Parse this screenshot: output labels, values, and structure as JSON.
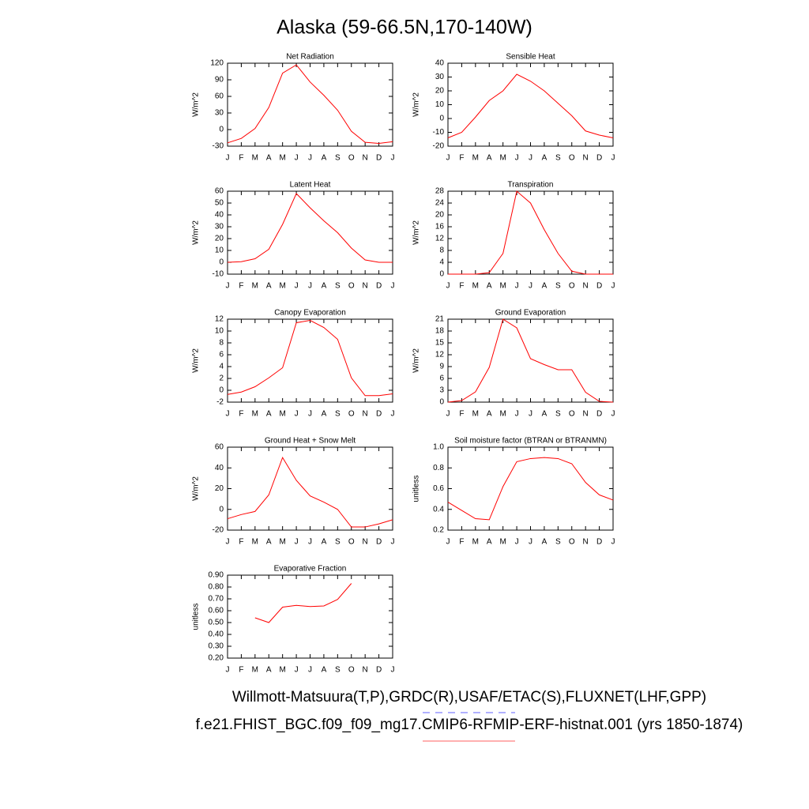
{
  "title": "Alaska (59-66.5N,170-140W)",
  "footer": [
    "Willmott-Matsuura(T,P),GRDC(R),USAF/ETAC(S),FLUXNET(LHF,GPP)",
    "f.e21.FHIST_BGC.f09_f09_mg17.CMIP6-RFMIP-ERF-histnat.001 (yrs 1850-1874)"
  ],
  "chart_data": [
    {
      "type": "line",
      "title": "Net Radiation",
      "y_label": "W/m^2",
      "categories": [
        "J",
        "F",
        "M",
        "A",
        "M",
        "J",
        "J",
        "A",
        "S",
        "O",
        "N",
        "D",
        "J"
      ],
      "color": "#ff0000",
      "values": [
        -24,
        -16,
        2,
        40,
        102,
        117,
        86,
        62,
        35,
        -3,
        -23,
        -25,
        -22
      ],
      "ylim": [
        -30,
        120
      ],
      "yticks": [
        -30,
        0,
        30,
        60,
        90,
        120
      ]
    },
    {
      "type": "line",
      "title": "Sensible Heat",
      "y_label": "W/m^2",
      "categories": [
        "J",
        "F",
        "M",
        "A",
        "M",
        "J",
        "J",
        "A",
        "S",
        "O",
        "N",
        "D",
        "J"
      ],
      "color": "#ff0000",
      "values": [
        -14,
        -10,
        1,
        13,
        20,
        32,
        27,
        20,
        11,
        2,
        -9,
        -12,
        -14
      ],
      "ylim": [
        -20,
        40
      ],
      "yticks": [
        -20,
        -10,
        0,
        10,
        20,
        30,
        40
      ]
    },
    {
      "type": "line",
      "title": "Latent Heat",
      "y_label": "W/m^2",
      "categories": [
        "J",
        "F",
        "M",
        "A",
        "M",
        "J",
        "J",
        "A",
        "S",
        "O",
        "N",
        "D",
        "J"
      ],
      "color": "#ff0000",
      "values": [
        0,
        0.5,
        3,
        11,
        32,
        58,
        46,
        35,
        25,
        12,
        2,
        0,
        0
      ],
      "ylim": [
        -10,
        60
      ],
      "yticks": [
        -10,
        0,
        10,
        20,
        30,
        40,
        50,
        60
      ]
    },
    {
      "type": "line",
      "title": "Transpiration",
      "y_label": "W/m^2",
      "categories": [
        "J",
        "F",
        "M",
        "A",
        "M",
        "J",
        "J",
        "A",
        "S",
        "O",
        "N",
        "D",
        "J"
      ],
      "color": "#ff0000",
      "values": [
        0,
        0,
        0,
        0.5,
        7,
        28,
        24,
        15,
        7,
        1,
        0,
        0,
        0
      ],
      "ylim": [
        0,
        28
      ],
      "yticks": [
        0,
        4,
        8,
        12,
        16,
        20,
        24,
        28
      ]
    },
    {
      "type": "line",
      "title": "Canopy Evaporation",
      "y_label": "W/m^2",
      "categories": [
        "J",
        "F",
        "M",
        "A",
        "M",
        "J",
        "J",
        "A",
        "S",
        "O",
        "N",
        "D",
        "J"
      ],
      "color": "#ff0000",
      "values": [
        -0.7,
        -0.3,
        0.6,
        2.1,
        3.8,
        11.4,
        11.8,
        10.6,
        8.6,
        2.1,
        -0.9,
        -0.9,
        -0.6
      ],
      "ylim": [
        -2,
        12
      ],
      "yticks": [
        -2,
        0,
        2,
        4,
        6,
        8,
        10,
        12
      ]
    },
    {
      "type": "line",
      "title": "Ground Evaporation",
      "y_label": "W/m^2",
      "categories": [
        "J",
        "F",
        "M",
        "A",
        "M",
        "J",
        "J",
        "A",
        "S",
        "O",
        "N",
        "D",
        "J"
      ],
      "color": "#ff0000",
      "values": [
        0,
        0.4,
        2.6,
        8.8,
        21,
        18.8,
        11,
        9.5,
        8.2,
        8.2,
        2.5,
        0.2,
        0
      ],
      "ylim": [
        0,
        21
      ],
      "yticks": [
        0,
        3,
        6,
        9,
        12,
        15,
        18,
        21
      ]
    },
    {
      "type": "line",
      "title": "Ground Heat + Snow Melt",
      "y_label": "W/m^2",
      "categories": [
        "J",
        "F",
        "M",
        "A",
        "M",
        "J",
        "J",
        "A",
        "S",
        "O",
        "N",
        "D",
        "J"
      ],
      "color": "#ff0000",
      "values": [
        -9,
        -5,
        -2,
        14,
        50,
        28,
        13,
        7,
        0,
        -17,
        -17,
        -14,
        -10
      ],
      "ylim": [
        -20,
        60
      ],
      "yticks": [
        -20,
        0,
        20,
        40,
        60
      ]
    },
    {
      "type": "line",
      "title": "Soil moisture factor (BTRAN or BTRANMN)",
      "y_label": "unitless",
      "categories": [
        "J",
        "F",
        "M",
        "A",
        "M",
        "J",
        "J",
        "A",
        "S",
        "O",
        "N",
        "D",
        "J"
      ],
      "color": "#ff0000",
      "values": [
        0.47,
        0.39,
        0.31,
        0.3,
        0.62,
        0.86,
        0.89,
        0.9,
        0.89,
        0.84,
        0.66,
        0.54,
        0.49
      ],
      "ylim": [
        0.2,
        1.0
      ],
      "yticks": [
        0.2,
        0.4,
        0.6,
        0.8,
        {
          "value": 1.0,
          "label": "1.0"
        }
      ]
    },
    {
      "type": "line",
      "title": "Evaporative Fraction",
      "y_label": "unitless",
      "categories": [
        "J",
        "F",
        "M",
        "A",
        "M",
        "J",
        "J",
        "A",
        "S",
        "O",
        "N",
        "D",
        "J"
      ],
      "color": "#ff0000",
      "values": [
        null,
        null,
        0.54,
        0.5,
        0.63,
        0.645,
        0.635,
        0.64,
        0.695,
        0.83,
        null,
        null,
        null
      ],
      "ylim": [
        0.2,
        0.9
      ],
      "yticks": [
        {
          "value": 0.2,
          "label": "0.20"
        },
        {
          "value": 0.3,
          "label": "0.30"
        },
        {
          "value": 0.4,
          "label": "0.40"
        },
        {
          "value": 0.5,
          "label": "0.50"
        },
        {
          "value": 0.6,
          "label": "0.60"
        },
        {
          "value": 0.7,
          "label": "0.70"
        },
        {
          "value": 0.8,
          "label": "0.80"
        },
        {
          "value": 0.9,
          "label": "0.90"
        }
      ]
    }
  ]
}
